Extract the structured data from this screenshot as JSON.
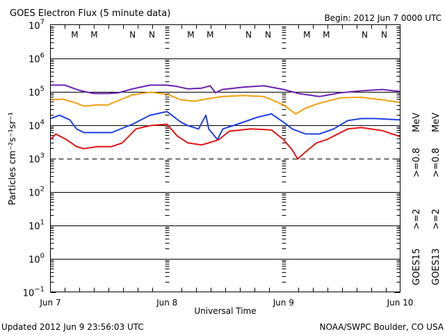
{
  "chart_data": {
    "type": "line",
    "title": "GOES Electron Flux (5 minute data)",
    "subtitle": "Begin: 2012 Jun 7 0000 UTC",
    "xlabel": "Universal Time",
    "ylabel": "Particles cm⁻²s⁻¹sr⁻¹",
    "yscale": "log",
    "ylim": [
      0.1,
      10000000
    ],
    "xlim_hours": [
      0,
      72
    ],
    "x_tick_labels": [
      "Jun 7",
      "Jun 8",
      "Jun 9",
      "Jun 10"
    ],
    "x_tick_hours": [
      0,
      24,
      48,
      72
    ],
    "y_ticks": [
      {
        "exp": "7",
        "value": 10000000
      },
      {
        "exp": "6",
        "value": 1000000
      },
      {
        "exp": "5",
        "value": 100000
      },
      {
        "exp": "4",
        "value": 10000
      },
      {
        "exp": "3",
        "value": 1000
      },
      {
        "exp": "2",
        "value": 100
      },
      {
        "exp": "1",
        "value": 10
      },
      {
        "exp": "0",
        "value": 1
      },
      {
        "exp": "−1",
        "value": 0.1
      }
    ],
    "y_tick_base": "10",
    "threshold_line": 1000,
    "grid": "horizontal at decades",
    "legend": [
      {
        "label": "GOES15",
        "color": "#000000"
      },
      {
        "label": ">=2",
        "color": "#1f3fe0"
      },
      {
        "label": ">=0.8",
        "color": "#6a1fb0"
      },
      {
        "label": "MeV",
        "color": "#000000"
      },
      {
        "label": "GOES13",
        "color": "#000000"
      },
      {
        "label": ">=2",
        "color": "#e01515"
      },
      {
        "label": ">=0.8",
        "color": "#f0a010"
      },
      {
        "label": "MeV",
        "color": "#000000"
      }
    ],
    "legend_position": "right (rotated)",
    "markers": [
      {
        "label": "M",
        "hour": 5.0,
        "color": "#e01515"
      },
      {
        "label": "M",
        "hour": 9.0,
        "color": "#1f3fe0"
      },
      {
        "label": "N",
        "hour": 16.9,
        "color": "#e01515"
      },
      {
        "label": "N",
        "hour": 20.9,
        "color": "#1f3fe0"
      },
      {
        "label": "M",
        "hour": 28.9,
        "color": "#e01515"
      },
      {
        "label": "M",
        "hour": 32.9,
        "color": "#1f3fe0"
      },
      {
        "label": "N",
        "hour": 40.8,
        "color": "#e01515"
      },
      {
        "label": "N",
        "hour": 44.8,
        "color": "#1f3fe0"
      },
      {
        "label": "M",
        "hour": 52.8,
        "color": "#e01515"
      },
      {
        "label": "M",
        "hour": 56.8,
        "color": "#1f3fe0"
      },
      {
        "label": "N",
        "hour": 64.7,
        "color": "#e01515"
      },
      {
        "label": "N",
        "hour": 68.7,
        "color": "#1f3fe0"
      }
    ],
    "series": [
      {
        "name": "GOES15 >=0.8 MeV",
        "color": "#6a1fb0",
        "hours": [
          0,
          3,
          5.4,
          6.9,
          9,
          11.9,
          14,
          16.9,
          20.5,
          24,
          26.1,
          28.3,
          31.1,
          32.9,
          34,
          35.4,
          39.7,
          44,
          48,
          51.1,
          55.4,
          59.7,
          64,
          68.3,
          72
        ],
        "log10": [
          5.19,
          5.19,
          5.06,
          5.0,
          4.94,
          4.94,
          4.96,
          5.08,
          5.19,
          5.19,
          5.15,
          5.08,
          5.1,
          5.17,
          4.96,
          5.06,
          5.13,
          5.17,
          5.06,
          4.94,
          4.85,
          4.96,
          5.02,
          5.06,
          5.0
        ]
      },
      {
        "name": "GOES13 >=0.8 MeV",
        "color": "#f0a010",
        "hours": [
          0,
          2.6,
          5.4,
          6.9,
          9.7,
          11.9,
          14,
          16.9,
          20.5,
          24,
          26.9,
          29.8,
          32.6,
          35.4,
          39.7,
          44,
          48,
          50.5,
          52.5,
          55.4,
          59.7,
          64,
          68.3,
          72
        ],
        "log10": [
          4.75,
          4.77,
          4.65,
          4.56,
          4.6,
          4.6,
          4.73,
          4.9,
          4.98,
          4.92,
          4.75,
          4.71,
          4.79,
          4.85,
          4.88,
          4.85,
          4.6,
          4.33,
          4.5,
          4.65,
          4.81,
          4.83,
          4.75,
          4.67
        ]
      },
      {
        "name": "GOES15 >=2 MeV",
        "color": "#1f3fe0",
        "hours": [
          0,
          1.9,
          4,
          5.4,
          6.9,
          9.7,
          12.6,
          16.9,
          20.5,
          24,
          26.9,
          28.3,
          30.5,
          32,
          32.6,
          34.4,
          35.5,
          38.5,
          42.6,
          45.5,
          48,
          49.8,
          52.5,
          55.4,
          58.3,
          61.2,
          64,
          66.9,
          72
        ],
        "log10": [
          4.19,
          4.29,
          4.15,
          3.88,
          3.77,
          3.77,
          3.77,
          4.02,
          4.29,
          4.4,
          4.08,
          3.98,
          3.88,
          4.29,
          3.88,
          3.56,
          3.88,
          4.02,
          4.23,
          4.33,
          4.08,
          3.88,
          3.73,
          3.73,
          3.88,
          4.13,
          4.19,
          4.19,
          4.15
        ]
      },
      {
        "name": "GOES13 >=2 MeV",
        "color": "#e01515",
        "hours": [
          0,
          1.1,
          3.3,
          5.4,
          6.9,
          9.7,
          12.6,
          14.8,
          17.6,
          20.5,
          24,
          26.1,
          28.3,
          31.1,
          32.6,
          34.7,
          36.8,
          41.2,
          45.5,
          48,
          49.8,
          50.9,
          52.5,
          54.8,
          56.9,
          61.2,
          64,
          68.3,
          72
        ],
        "log10": [
          3.56,
          3.73,
          3.56,
          3.35,
          3.29,
          3.35,
          3.35,
          3.46,
          3.88,
          3.98,
          4.02,
          3.67,
          3.46,
          3.4,
          3.46,
          3.56,
          3.81,
          3.88,
          3.85,
          3.56,
          3.25,
          2.98,
          3.19,
          3.46,
          3.56,
          3.88,
          3.92,
          3.83,
          3.65
        ]
      }
    ]
  },
  "footer": {
    "updated": "Updated 2012 Jun  9 23:56:03 UTC",
    "credit": "NOAA/SWPC Boulder, CO USA"
  }
}
